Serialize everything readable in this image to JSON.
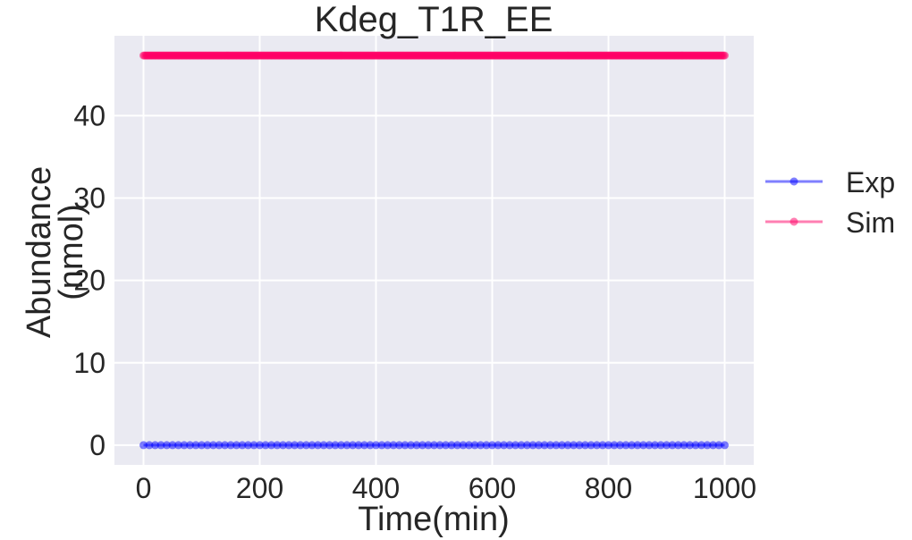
{
  "chart_data": {
    "type": "line",
    "title": "Kdeg_T1R_EE",
    "xlabel": "Time(min)",
    "ylabel_lines": [
      "Abundance",
      "(nmol)"
    ],
    "xlim": [
      -50,
      1050
    ],
    "ylim": [
      -2.4,
      49.7
    ],
    "xticks": [
      0,
      200,
      400,
      600,
      800,
      1000
    ],
    "yticks": [
      0,
      10,
      20,
      30,
      40
    ],
    "grid": true,
    "legend_position": "right",
    "background": "#eaeaf2",
    "series": [
      {
        "name": "Exp",
        "color": "#0000ff",
        "x_start": 0,
        "x_end": 1000,
        "x_step": 10,
        "y": 0.0
      },
      {
        "name": "Sim",
        "color": "#ff0066",
        "x_start": 0,
        "x_end": 1000,
        "x_step": 2,
        "y": 47.3
      }
    ]
  }
}
